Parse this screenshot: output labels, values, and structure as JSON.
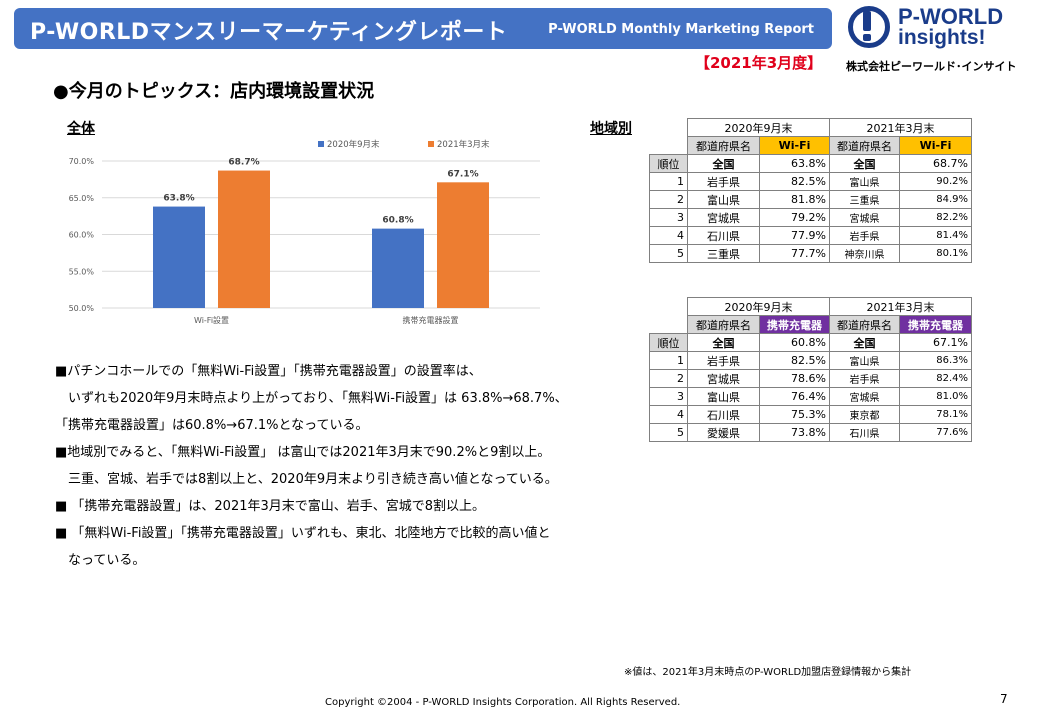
{
  "header": {
    "title": "P-WORLDマンスリーマーケティングレポート",
    "subtitle": "P-WORLD Monthly Marketing Report"
  },
  "report_period": "【2021年3月度】",
  "logo": {
    "line1": "P-WORLD",
    "line2": "insights!",
    "company": "株式会社ピーワールド･インサイト"
  },
  "topic_title": "●今月のトピックス：店内環境設置状況",
  "chart_section_label": "全体",
  "region_section_label": "地域別",
  "colors": {
    "blue": "#4472c4",
    "orange": "#ed7d31",
    "header": "#4472c4",
    "wifi_header": "#ffc000",
    "charger_header": "#7030a0"
  },
  "chart_data": {
    "type": "bar",
    "categories": [
      "Wi-Fi設置",
      "携帯充電器設置"
    ],
    "series": [
      {
        "name": "2020年9月末",
        "values": [
          63.8,
          60.8
        ],
        "labels": [
          "63.8%",
          "60.8%"
        ],
        "color": "#4472c4"
      },
      {
        "name": "2021年3月末",
        "values": [
          68.7,
          67.1
        ],
        "labels": [
          "68.7%",
          "67.1%"
        ],
        "color": "#ed7d31"
      }
    ],
    "yticks": [
      "70.0%",
      "65.0%",
      "60.0%",
      "55.0%",
      "50.0%"
    ],
    "ylim": [
      50,
      70
    ],
    "legend": "top-center",
    "grid": true
  },
  "bullets": [
    "■パチンコホールでの「無料Wi-Fi設置」「携帯充電器設置」の設置率は、",
    "　いずれも2020年9月末時点より上がっており、「無料Wi-Fi設置」は 63.8%→68.7%、",
    "「携帯充電器設置」は60.8%→67.1%となっている。",
    "■地域別でみると、「無料Wi-Fi設置」 は富山では2021年3月末で90.2%と9割以上。",
    "　三重、宮城、岩手では8割以上と、2020年9月末より引き続き高い値となっている。",
    "■ 「携帯充電器設置」は、2021年3月末で富山、岩手、宮城で8割以上。",
    "■ 「無料Wi-Fi設置」「携帯充電器設置」いずれも、東北、北陸地方で比較的高い値と",
    "　なっている。"
  ],
  "wifi_table": {
    "period1": "2020年9月末",
    "period2": "2021年3月末",
    "pref_header": "都道府県名",
    "metric": "Wi-Fi",
    "rank_header": "順位",
    "total_label": "全国",
    "total1": "63.8%",
    "total2": "68.7%",
    "rows": [
      {
        "rank": "1",
        "p1": "岩手県",
        "v1": "82.5%",
        "p2": "富山県",
        "v2": "90.2%"
      },
      {
        "rank": "2",
        "p1": "富山県",
        "v1": "81.8%",
        "p2": "三重県",
        "v2": "84.9%"
      },
      {
        "rank": "3",
        "p1": "宮城県",
        "v1": "79.2%",
        "p2": "宮城県",
        "v2": "82.2%"
      },
      {
        "rank": "4",
        "p1": "石川県",
        "v1": "77.9%",
        "p2": "岩手県",
        "v2": "81.4%"
      },
      {
        "rank": "5",
        "p1": "三重県",
        "v1": "77.7%",
        "p2": "神奈川県",
        "v2": "80.1%"
      }
    ]
  },
  "charger_table": {
    "period1": "2020年9月末",
    "period2": "2021年3月末",
    "pref_header": "都道府県名",
    "metric": "携帯充電器",
    "rank_header": "順位",
    "total_label": "全国",
    "total1": "60.8%",
    "total2": "67.1%",
    "rows": [
      {
        "rank": "1",
        "p1": "岩手県",
        "v1": "82.5%",
        "p2": "富山県",
        "v2": "86.3%"
      },
      {
        "rank": "2",
        "p1": "宮城県",
        "v1": "78.6%",
        "p2": "岩手県",
        "v2": "82.4%"
      },
      {
        "rank": "3",
        "p1": "富山県",
        "v1": "76.4%",
        "p2": "宮城県",
        "v2": "81.0%"
      },
      {
        "rank": "4",
        "p1": "石川県",
        "v1": "75.3%",
        "p2": "東京都",
        "v2": "78.1%"
      },
      {
        "rank": "5",
        "p1": "愛媛県",
        "v1": "73.8%",
        "p2": "石川県",
        "v2": "77.6%"
      }
    ]
  },
  "footnote": "※値は、2021年3月末時点のP-WORLD加盟店登録情報から集計",
  "copyright": "Copyright ©2004 -  P-WORLD Insights Corporation. All Rights Reserved.",
  "page_number": "7"
}
